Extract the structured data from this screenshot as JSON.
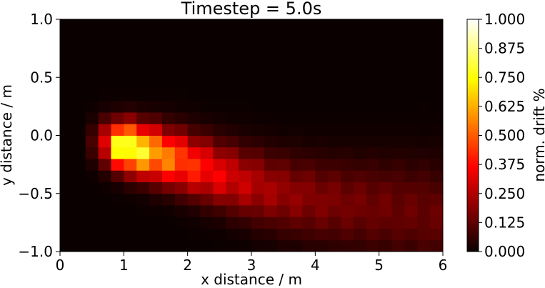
{
  "chart_data": {
    "type": "heatmap",
    "title": "Timestep = 5.0s",
    "xlabel": "x distance / m",
    "ylabel": "y distance / m",
    "xlim": [
      0,
      6
    ],
    "ylim": [
      -1,
      1
    ],
    "xticks": [
      0,
      1,
      2,
      3,
      4,
      5,
      6
    ],
    "yticks": [
      -1.0,
      -0.5,
      0.0,
      0.5,
      1.0
    ],
    "grid_cols": 30,
    "grid_rows": 20,
    "colormap": "hot",
    "colorbar": {
      "label": "norm. drift %",
      "range": [
        0,
        1
      ],
      "ticks": [
        "0.000",
        "0.125",
        "0.250",
        "0.375",
        "0.500",
        "0.625",
        "0.750",
        "0.875",
        "1.000"
      ]
    },
    "plume": {
      "peak_x": 1.05,
      "peak_y": -0.15,
      "peak_value": 1.0,
      "drift_slope": -0.12,
      "tail_end_x": 6.0
    }
  }
}
